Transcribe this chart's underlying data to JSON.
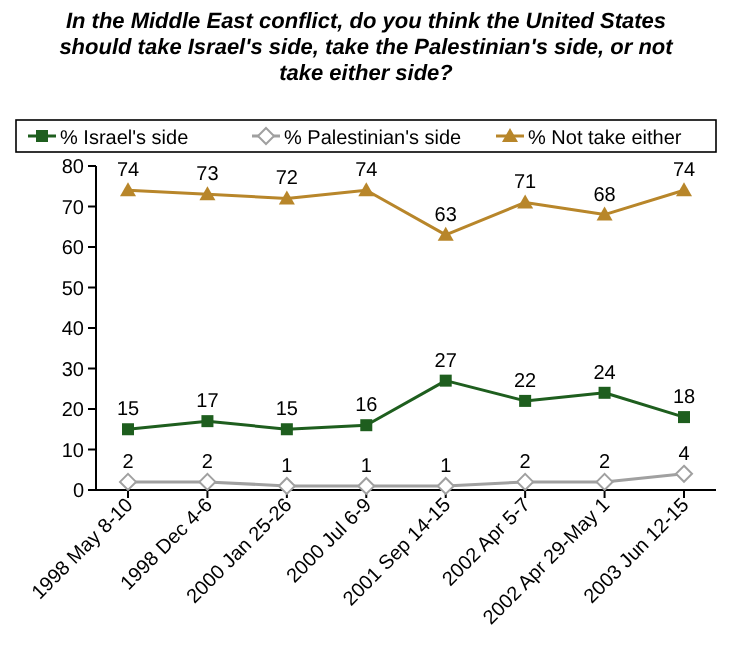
{
  "chart_data": {
    "type": "line",
    "title": "In the Middle East conflict, do you think the United States should take Israel's side, take the Palestinian's side, or not take either side?",
    "categories": [
      "1998 May 8-10",
      "1998 Dec 4-6",
      "2000 Jan 25-26",
      "2000 Jul 6-9",
      "2001 Sep 14-15",
      "2002 Apr 5-7",
      "2002 Apr 29-May 1",
      "2003 Jun 12-15"
    ],
    "series": [
      {
        "name": "% Israel's side",
        "color": "#1e5e1e",
        "marker": "square",
        "values": [
          15,
          17,
          15,
          16,
          27,
          22,
          24,
          18
        ]
      },
      {
        "name": "% Palestinian's side",
        "color": "#a0a0a0",
        "marker": "diamond",
        "values": [
          2,
          2,
          1,
          1,
          1,
          2,
          2,
          4
        ]
      },
      {
        "name": "% Not take either",
        "color": "#b8862a",
        "marker": "triangle",
        "values": [
          74,
          73,
          72,
          74,
          63,
          71,
          68,
          74
        ]
      }
    ],
    "ylim": [
      0,
      80
    ],
    "yticks": [
      0,
      10,
      20,
      30,
      40,
      50,
      60,
      70,
      80
    ],
    "grid": false,
    "legend": "top",
    "data_labels": true
  }
}
